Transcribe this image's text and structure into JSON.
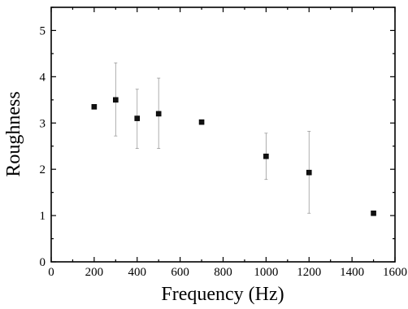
{
  "chart_data": {
    "type": "scatter",
    "title": "",
    "xlabel": "Frequency (Hz)",
    "ylabel": "Roughness",
    "xlim": [
      0,
      1600
    ],
    "ylim": [
      0,
      5.5
    ],
    "xticks": [
      0,
      200,
      400,
      600,
      800,
      1000,
      1200,
      1400,
      1600
    ],
    "yticks": [
      0,
      1,
      2,
      3,
      4,
      5
    ],
    "xtick_labels": [
      "0",
      "200",
      "400",
      "600",
      "800",
      "1000",
      "1200",
      "1400",
      "1600"
    ],
    "ytick_labels": [
      "0",
      "1",
      "2",
      "3",
      "4",
      "5"
    ],
    "grid": false,
    "legend": null,
    "series": [
      {
        "marker": "square",
        "color": "#111111",
        "x": [
          200,
          300,
          400,
          500,
          700,
          1000,
          1200,
          1500
        ],
        "y": [
          3.35,
          3.5,
          3.1,
          3.2,
          3.02,
          2.28,
          1.93,
          1.05
        ],
        "y_low": [
          null,
          2.72,
          2.45,
          2.45,
          null,
          1.78,
          1.05,
          null
        ],
        "y_high": [
          null,
          4.3,
          3.73,
          3.97,
          null,
          2.78,
          2.82,
          null
        ]
      }
    ]
  }
}
